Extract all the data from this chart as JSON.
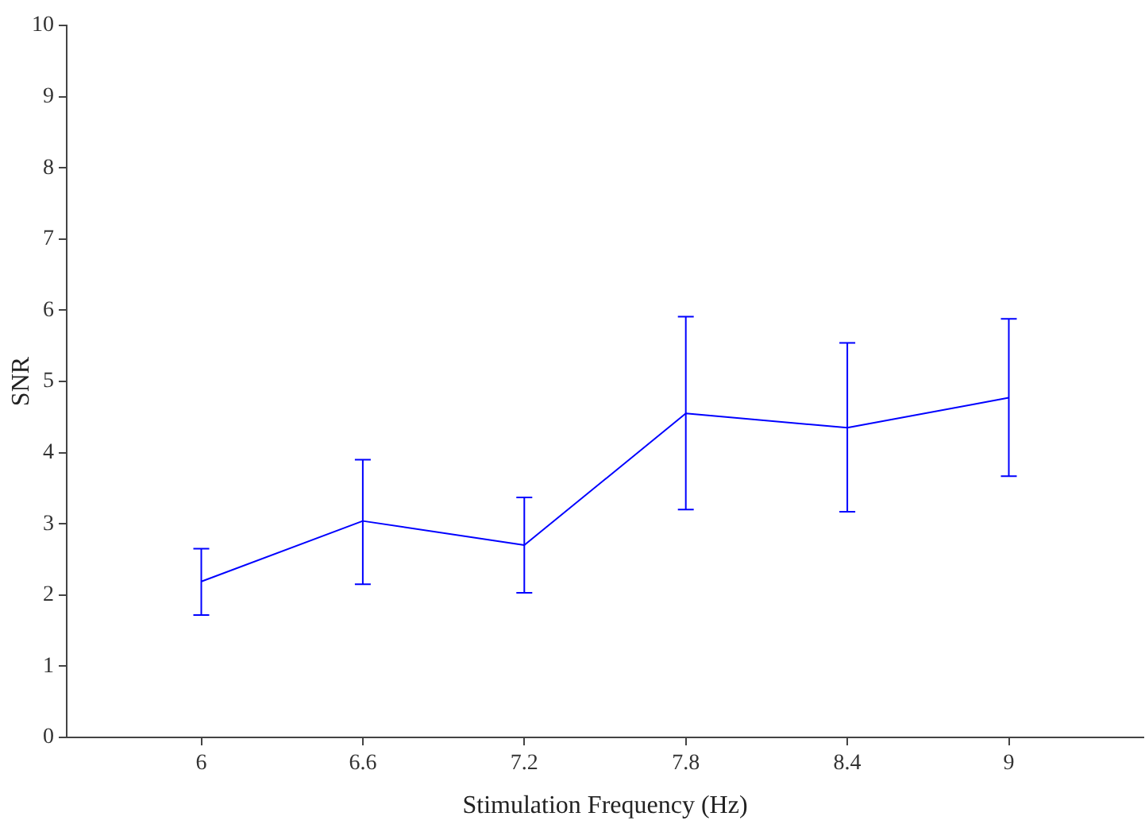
{
  "chart_data": {
    "type": "line",
    "xlabel": "Stimulation Frequency (Hz)",
    "ylabel": "SNR",
    "x": [
      6,
      6.6,
      7.2,
      7.8,
      8.4,
      9
    ],
    "series": [
      {
        "color": "#0000ff",
        "values": [
          2.19,
          3.04,
          2.7,
          4.55,
          4.35,
          4.77
        ],
        "errors": [
          [
            1.72,
            2.65
          ],
          [
            2.15,
            3.9
          ],
          [
            2.03,
            3.37
          ],
          [
            3.2,
            5.91
          ],
          [
            3.17,
            5.54
          ],
          [
            3.67,
            5.88
          ]
        ]
      }
    ],
    "xlim": [
      5.5,
      9.5
    ],
    "xticks": [
      6,
      6.6,
      7.2,
      7.8,
      8.4,
      9
    ],
    "ylim": [
      0,
      10
    ],
    "yticks": [
      0,
      1,
      2,
      3,
      4,
      5,
      6,
      7,
      8,
      9,
      10
    ],
    "grid": false,
    "legend": false,
    "marker": "none",
    "line_style": "solid"
  }
}
